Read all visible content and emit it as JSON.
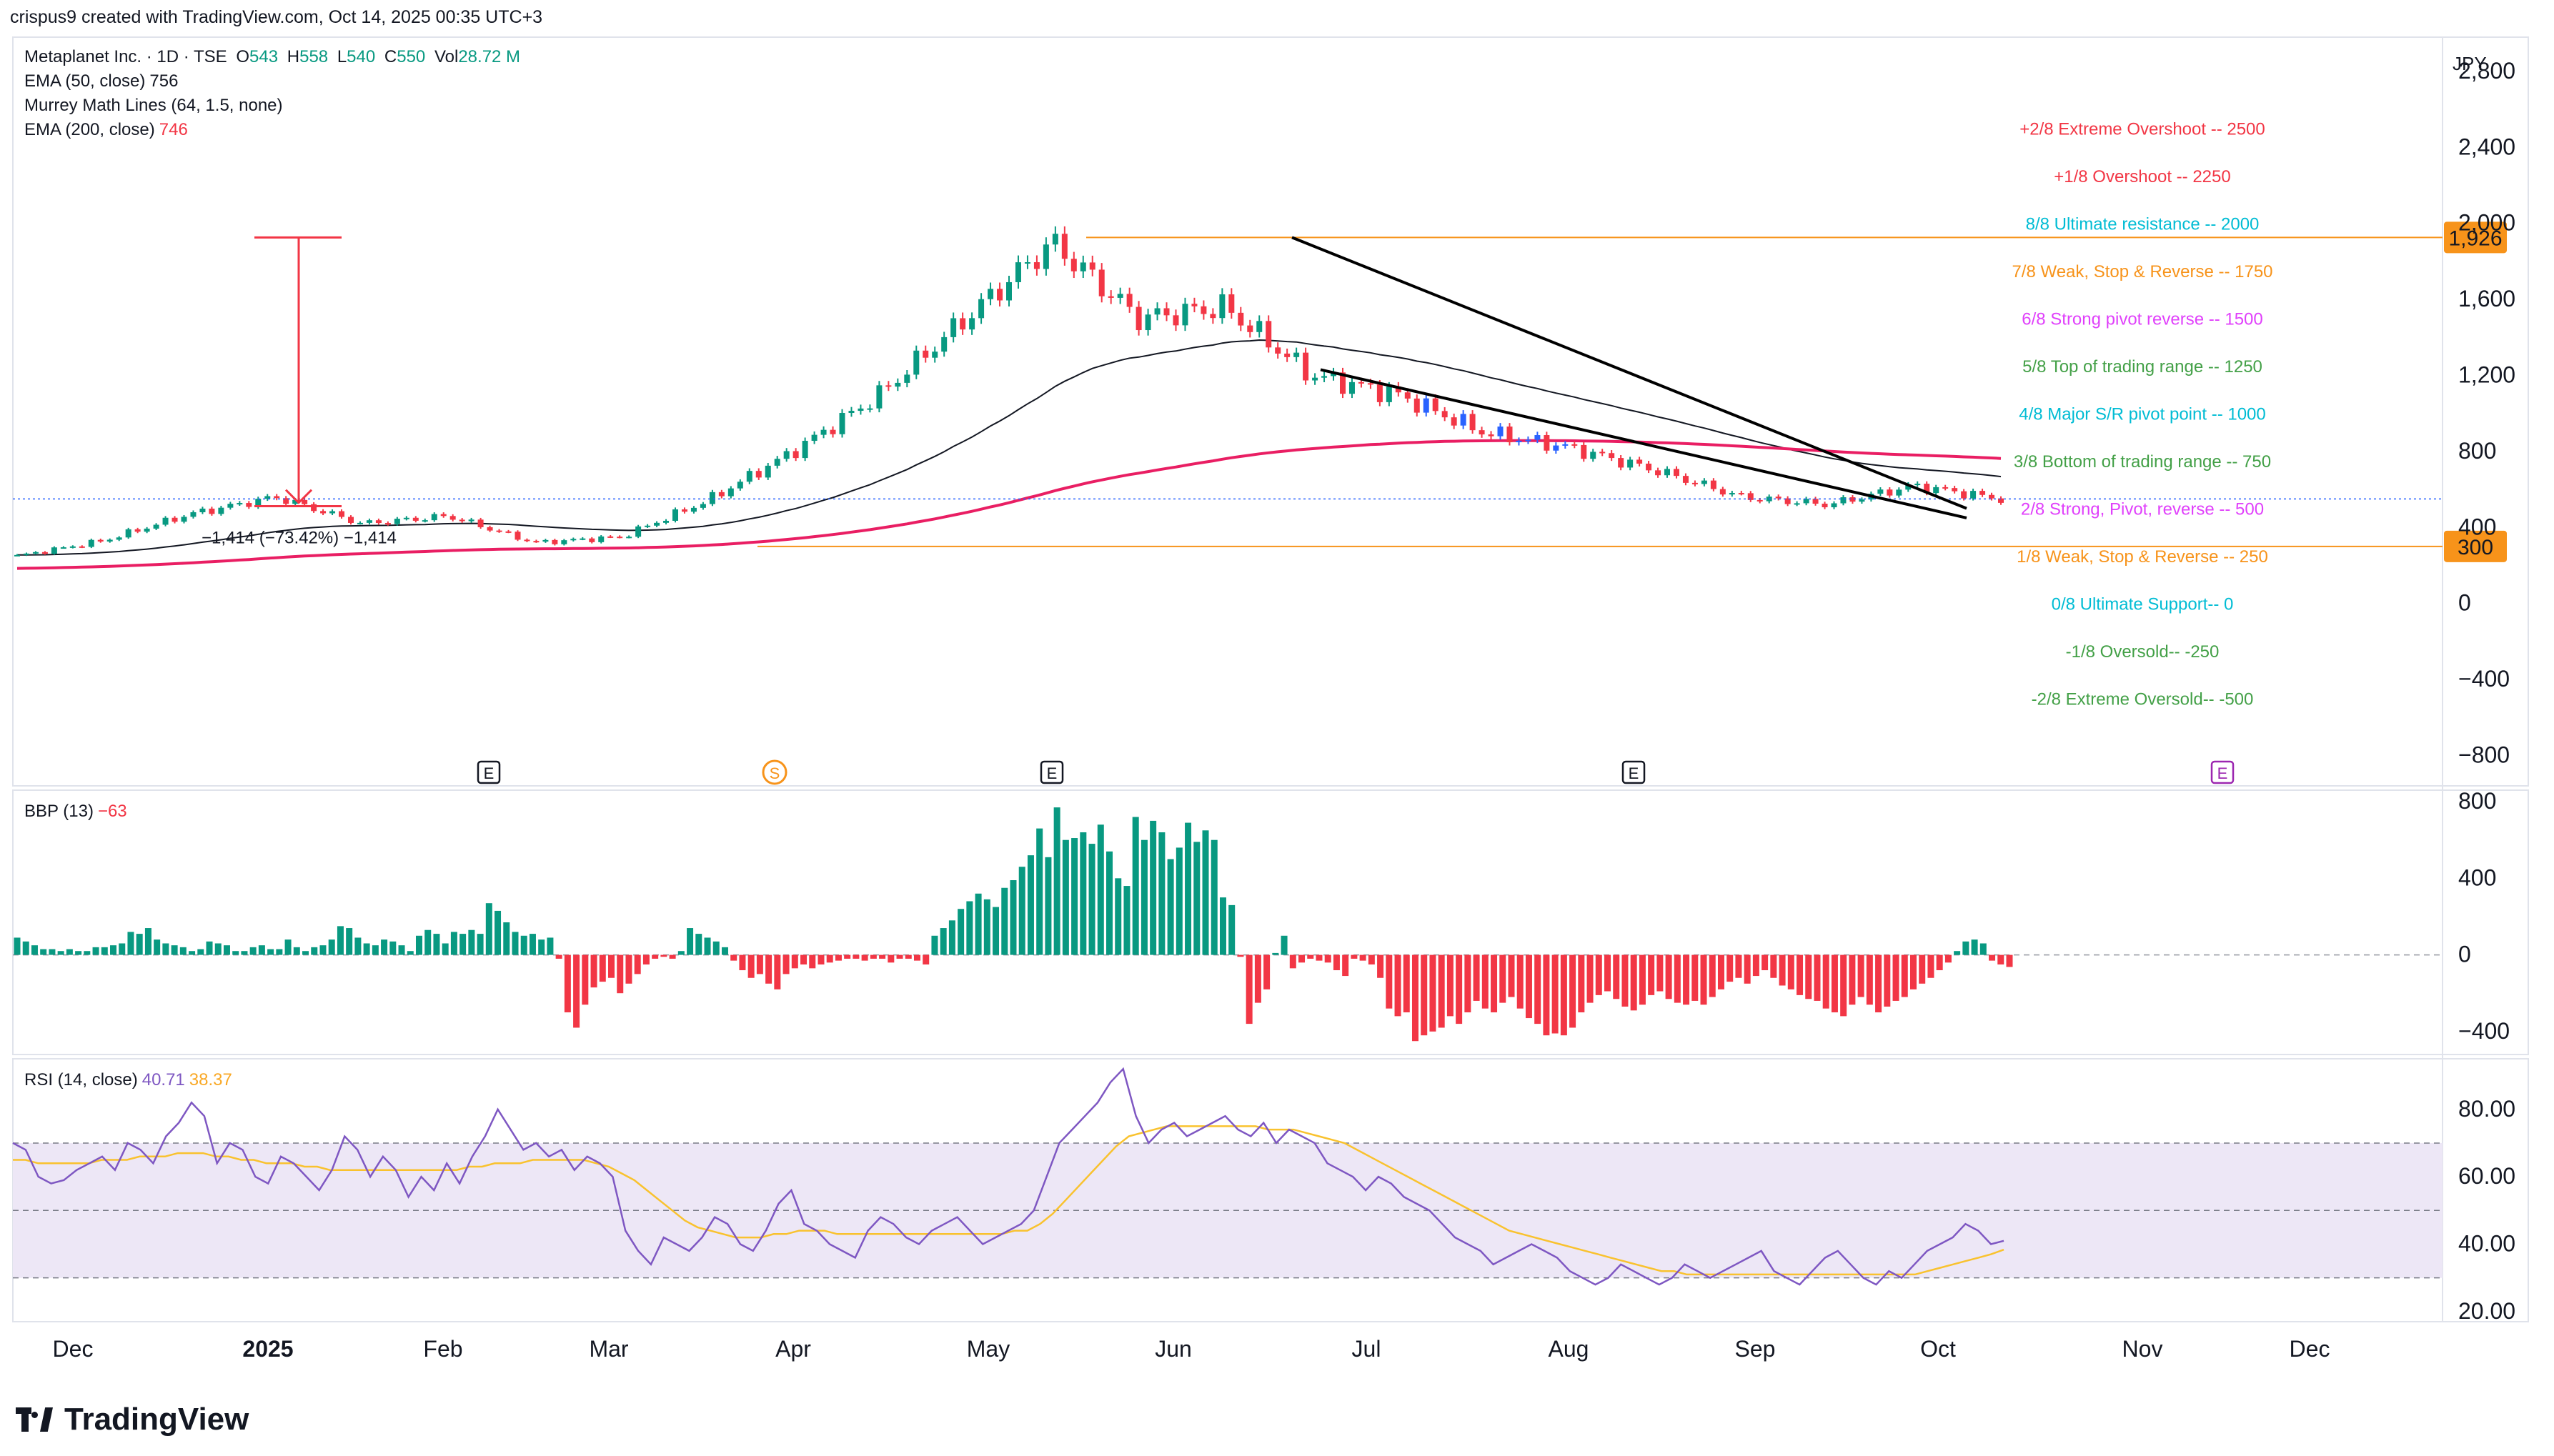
{
  "header": {
    "credit": "crispus9 created with TradingView.com, Oct 14, 2025 00:35 UTC+3"
  },
  "legend": {
    "symbol": "Metaplanet Inc. · 1D · TSE",
    "o_label": "O",
    "o": "543",
    "h_label": "H",
    "h": "558",
    "l_label": "L",
    "l": "540",
    "c_label": "C",
    "c": "550",
    "vol_label": "Vol",
    "vol": "28.72 M",
    "ema50_label": "EMA (50, close)",
    "ema50": "756",
    "murrey_label": "Murrey Math Lines (64, 1.5, none)",
    "ema200_label": "EMA (200, close)",
    "ema200": "746",
    "bbp_label": "BBP (13)",
    "bbp": "−63",
    "rsi_label": "RSI (14, close)",
    "rsi": "40.71",
    "rsi_ma": "38.37"
  },
  "brand": {
    "name": "TradingView"
  },
  "colors": {
    "up": "#089981",
    "down": "#f23645",
    "blue_candle": "#2962ff",
    "ema50": "#131722",
    "ema200": "#e91e63",
    "orange": "#f7931a",
    "rsi": "#7e57c2",
    "rsi_ma": "#f9c22e",
    "rsi_band": "#ede7f6"
  },
  "chart_data": [
    {
      "type": "candlestick",
      "currency": "JPY",
      "x_ticks": [
        "Dec",
        "2025",
        "Feb",
        "Mar",
        "Apr",
        "May",
        "Jun",
        "Jul",
        "Aug",
        "Sep",
        "Oct",
        "Nov",
        "Dec"
      ],
      "y_ticks": [
        "2,800",
        "2,400",
        "2,000",
        "1,600",
        "1,200",
        "800",
        "400",
        "0",
        "−400",
        "−800"
      ],
      "y_tick_values": [
        2800,
        2400,
        2000,
        1600,
        1200,
        800,
        400,
        0,
        -400,
        -800
      ],
      "ylim": [
        -960,
        2980
      ],
      "last_price_label": "550",
      "price_tags": [
        {
          "label": "1,926",
          "value": 1926
        },
        {
          "label": "300",
          "value": 300
        }
      ],
      "measure_label": "−1,414 (−73.42%) −1,414",
      "events": [
        "E",
        "S",
        "E",
        "E",
        "E"
      ],
      "murrey_lines": [
        {
          "label": "+2/8 Extreme Overshoot --  2500",
          "value": 2500,
          "color": "#f23645"
        },
        {
          "label": "+1/8 Overshoot --  2250",
          "value": 2250,
          "color": "#f23645"
        },
        {
          "label": "8/8 Ultimate resistance --  2000",
          "value": 2000,
          "color": "#00bcd4"
        },
        {
          "label": "7/8 Weak, Stop & Reverse --  1750",
          "value": 1750,
          "color": "#f7931a"
        },
        {
          "label": "6/8 Strong pivot reverse --  1500",
          "value": 1500,
          "color": "#e040fb"
        },
        {
          "label": "5/8 Top of trading range --  1250",
          "value": 1250,
          "color": "#43a047"
        },
        {
          "label": "4/8 Major S/R pivot point --  1000",
          "value": 1000,
          "color": "#00bcd4"
        },
        {
          "label": "3/8 Bottom of trading range --  750",
          "value": 750,
          "color": "#43a047"
        },
        {
          "label": "2/8 Strong, Pivot, reverse --  500",
          "value": 500,
          "color": "#e040fb"
        },
        {
          "label": "1/8 Weak, Stop & Reverse --  250",
          "value": 250,
          "color": "#f7931a"
        },
        {
          "label": "0/8 Ultimate Support--  0",
          "value": 0,
          "color": "#00bcd4"
        },
        {
          "label": "-1/8 Oversold--  -250",
          "value": -250,
          "color": "#43a047"
        },
        {
          "label": "-2/8 Extreme Oversold--  -500",
          "value": -500,
          "color": "#43a047"
        }
      ],
      "series": [
        {
          "name": "Metaplanet Inc.",
          "close_path": [
            [
              "Dec",
              250
            ],
            [
              "2025",
              330
            ],
            [
              "Feb",
              470
            ],
            [
              "Feb",
              560
            ],
            [
              "Mar",
              420
            ],
            [
              "Apr",
              460
            ],
            [
              "Apr",
              320
            ],
            [
              "May",
              350
            ],
            [
              "May",
              540
            ],
            [
              "May",
              800
            ],
            [
              "Jun",
              1100
            ],
            [
              "Jun",
              1500
            ],
            [
              "Jun",
              1900
            ],
            [
              "Jul",
              1500
            ],
            [
              "Jul",
              1560
            ],
            [
              "Jul",
              1200
            ],
            [
              "Aug",
              1100
            ],
            [
              "Aug",
              900
            ],
            [
              "Sep",
              820
            ],
            [
              "Sep",
              700
            ],
            [
              "Sep",
              560
            ],
            [
              "Oct",
              520
            ],
            [
              "Oct",
              620
            ],
            [
              "Oct",
              550
            ]
          ]
        },
        {
          "name": "EMA (50, close)",
          "last": 756
        },
        {
          "name": "EMA (200, close)",
          "last": 746
        }
      ]
    },
    {
      "type": "bar",
      "title": "BBP (13)",
      "y_ticks": [
        "800",
        "400",
        "0",
        "−400"
      ],
      "y_tick_values": [
        800,
        400,
        0,
        -400
      ],
      "ylim": [
        -520,
        860
      ],
      "values": [
        90,
        70,
        50,
        30,
        30,
        20,
        30,
        20,
        20,
        40,
        40,
        50,
        60,
        120,
        110,
        140,
        80,
        60,
        50,
        40,
        20,
        30,
        70,
        60,
        50,
        20,
        20,
        40,
        50,
        30,
        30,
        80,
        40,
        20,
        40,
        50,
        80,
        150,
        140,
        90,
        60,
        50,
        80,
        70,
        50,
        20,
        100,
        130,
        110,
        60,
        120,
        110,
        130,
        110,
        270,
        230,
        170,
        120,
        100,
        110,
        80,
        90,
        -20,
        -300,
        -380,
        -260,
        -170,
        -140,
        -120,
        -200,
        -150,
        -100,
        -50,
        -20,
        -10,
        -20,
        20,
        140,
        110,
        90,
        70,
        40,
        -30,
        -80,
        -120,
        -100,
        -150,
        -180,
        -100,
        -70,
        -50,
        -70,
        -50,
        -40,
        -30,
        -20,
        -20,
        -30,
        -20,
        -20,
        -40,
        -20,
        -20,
        -30,
        -50,
        100,
        140,
        180,
        240,
        280,
        320,
        290,
        250,
        350,
        390,
        460,
        520,
        660,
        510,
        770,
        600,
        610,
        640,
        580,
        680,
        540,
        400,
        360,
        720,
        600,
        700,
        640,
        500,
        560,
        690,
        590,
        650,
        600,
        300,
        260,
        -10,
        -360,
        -250,
        -180,
        10,
        100,
        -70,
        -40,
        -20,
        -30,
        -40,
        -80,
        -110,
        -20,
        -30,
        -50,
        -120,
        -280,
        -320,
        -300,
        -450,
        -420,
        -400,
        -380,
        -320,
        -360,
        -300,
        -240,
        -280,
        -300,
        -250,
        -220,
        -280,
        -330,
        -360,
        -420,
        -410,
        -420,
        -380,
        -300,
        -250,
        -210,
        -190,
        -230,
        -270,
        -290,
        -260,
        -210,
        -190,
        -230,
        -250,
        -260,
        -240,
        -260,
        -220,
        -180,
        -140,
        -120,
        -150,
        -110,
        -80,
        -120,
        -160,
        -180,
        -210,
        -230,
        -240,
        -280,
        -300,
        -320,
        -260,
        -220,
        -260,
        -300,
        -270,
        -240,
        -220,
        -180,
        -150,
        -120,
        -80,
        -40,
        20,
        70,
        80,
        60,
        -30,
        -50,
        -63
      ]
    },
    {
      "type": "line",
      "title": "RSI (14, close)",
      "y_ticks": [
        "80.00",
        "60.00",
        "40.00",
        "20.00"
      ],
      "y_tick_values": [
        80,
        60,
        40,
        20
      ],
      "ylim": [
        17,
        95
      ],
      "band": [
        30,
        70
      ],
      "midline": 50,
      "series": [
        {
          "name": "RSI",
          "values": [
            70,
            68,
            60,
            58,
            59,
            62,
            64,
            66,
            62,
            70,
            68,
            64,
            72,
            76,
            82,
            78,
            64,
            70,
            68,
            60,
            58,
            66,
            64,
            60,
            56,
            62,
            72,
            68,
            60,
            66,
            62,
            54,
            60,
            56,
            64,
            58,
            66,
            72,
            80,
            74,
            68,
            70,
            66,
            68,
            62,
            66,
            64,
            60,
            44,
            38,
            34,
            42,
            40,
            38,
            42,
            48,
            46,
            40,
            38,
            44,
            52,
            56,
            46,
            44,
            40,
            38,
            36,
            44,
            48,
            46,
            42,
            40,
            44,
            46,
            48,
            44,
            40,
            42,
            44,
            46,
            50,
            60,
            70,
            74,
            78,
            82,
            88,
            92,
            78,
            70,
            74,
            76,
            72,
            74,
            76,
            78,
            74,
            72,
            76,
            70,
            74,
            72,
            70,
            64,
            62,
            60,
            56,
            60,
            58,
            54,
            52,
            50,
            46,
            42,
            40,
            38,
            34,
            36,
            38,
            40,
            38,
            36,
            32,
            30,
            28,
            30,
            34,
            32,
            30,
            28,
            30,
            34,
            32,
            30,
            32,
            34,
            36,
            38,
            32,
            30,
            28,
            32,
            36,
            38,
            34,
            30,
            28,
            32,
            30,
            34,
            38,
            40,
            42,
            46,
            44,
            40,
            41
          ],
          "last": 40.71
        },
        {
          "name": "RSI-based MA",
          "values": [
            65,
            65,
            64,
            64,
            64,
            64,
            64,
            65,
            65,
            65,
            66,
            66,
            66,
            67,
            67,
            67,
            66,
            66,
            65,
            65,
            64,
            64,
            64,
            63,
            63,
            62,
            62,
            62,
            62,
            62,
            62,
            62,
            62,
            62,
            62,
            62,
            63,
            63,
            64,
            64,
            64,
            65,
            65,
            65,
            65,
            65,
            64,
            63,
            61,
            59,
            56,
            53,
            50,
            47,
            45,
            44,
            43,
            42,
            42,
            42,
            43,
            43,
            44,
            44,
            44,
            43,
            43,
            43,
            43,
            43,
            43,
            43,
            43,
            43,
            43,
            43,
            43,
            43,
            43,
            44,
            44,
            46,
            49,
            53,
            57,
            61,
            65,
            69,
            72,
            73,
            74,
            75,
            75,
            75,
            75,
            75,
            75,
            75,
            75,
            74,
            74,
            74,
            73,
            72,
            71,
            70,
            68,
            66,
            64,
            62,
            60,
            58,
            56,
            54,
            52,
            50,
            48,
            46,
            44,
            43,
            42,
            41,
            40,
            39,
            38,
            37,
            36,
            35,
            34,
            33,
            32,
            32,
            31,
            31,
            31,
            31,
            31,
            31,
            31,
            31,
            31,
            31,
            31,
            31,
            31,
            31,
            31,
            31,
            31,
            31,
            31,
            32,
            33,
            34,
            35,
            36,
            37,
            38.37
          ],
          "last": 38.37
        }
      ]
    }
  ]
}
